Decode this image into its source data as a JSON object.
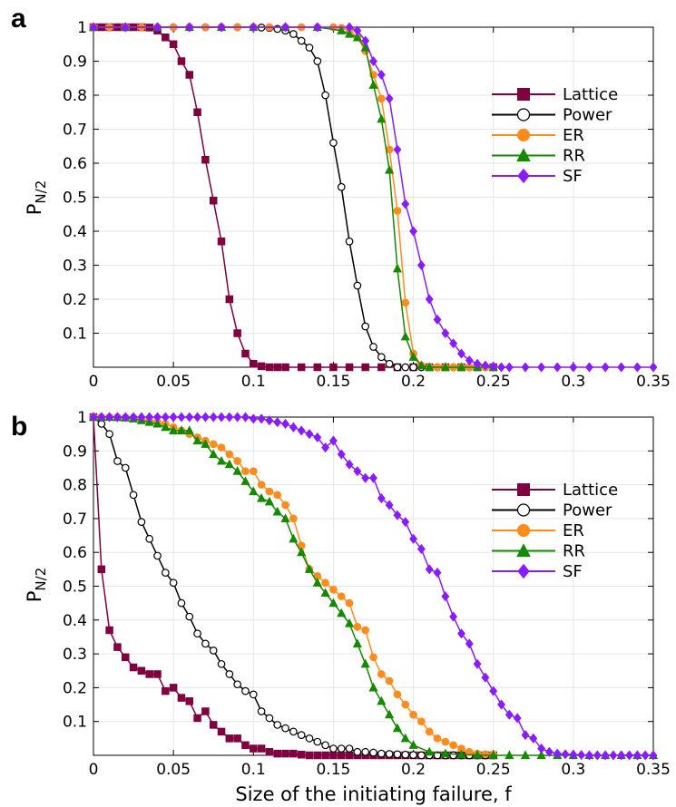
{
  "chart_data": [
    {
      "type": "line",
      "panel_label": "a",
      "ylabel": "P",
      "ylabel_sub": "N/2",
      "xlabel": "",
      "xlim": [
        0,
        0.35
      ],
      "ylim": [
        0,
        1
      ],
      "xticks": [
        "0",
        "0.05",
        "0.1",
        "0.15",
        "0.2",
        "0.25",
        "0.3",
        "0.35"
      ],
      "yticks": [
        "0.1",
        "0.2",
        "0.3",
        "0.4",
        "0.5",
        "0.6",
        "0.7",
        "0.8",
        "0.9",
        "1"
      ],
      "grid": true,
      "legend_position": "right",
      "series": [
        {
          "name": "Lattice",
          "color": "#800040",
          "marker": "square",
          "hollow": false,
          "x": [
            0,
            0.005,
            0.01,
            0.015,
            0.02,
            0.025,
            0.03,
            0.035,
            0.04,
            0.045,
            0.05,
            0.055,
            0.06,
            0.065,
            0.07,
            0.075,
            0.08,
            0.085,
            0.09,
            0.095,
            0.1,
            0.105,
            0.11,
            0.115,
            0.12,
            0.13,
            0.14,
            0.15,
            0.16,
            0.17,
            0.18,
            0.19,
            0.2,
            0.21,
            0.22,
            0.23,
            0.24,
            0.25
          ],
          "y": [
            1,
            1,
            1,
            1,
            1,
            1,
            1,
            0.999,
            0.99,
            0.97,
            0.95,
            0.9,
            0.86,
            0.75,
            0.61,
            0.49,
            0.37,
            0.2,
            0.1,
            0.04,
            0.01,
            0.003,
            0,
            0,
            0,
            0,
            0,
            0,
            0,
            0,
            0,
            0,
            0,
            0,
            0,
            0,
            0,
            0
          ]
        },
        {
          "name": "Power",
          "color": "#000000",
          "marker": "circle",
          "hollow": true,
          "x": [
            0,
            0.01,
            0.02,
            0.03,
            0.04,
            0.05,
            0.06,
            0.07,
            0.08,
            0.09,
            0.1,
            0.105,
            0.11,
            0.115,
            0.12,
            0.125,
            0.13,
            0.135,
            0.14,
            0.145,
            0.15,
            0.155,
            0.16,
            0.165,
            0.17,
            0.175,
            0.18,
            0.185,
            0.19,
            0.195,
            0.2,
            0.205,
            0.21,
            0.215,
            0.22,
            0.225,
            0.23,
            0.235,
            0.24,
            0.245,
            0.25
          ],
          "y": [
            1,
            1,
            1,
            1,
            1,
            1,
            1,
            1,
            1,
            1,
            1,
            0.999,
            0.998,
            0.995,
            0.99,
            0.98,
            0.96,
            0.94,
            0.9,
            0.8,
            0.66,
            0.53,
            0.37,
            0.24,
            0.12,
            0.06,
            0.03,
            0.01,
            0,
            0,
            0,
            0,
            0,
            0,
            0,
            0,
            0,
            0,
            0,
            0,
            0
          ]
        },
        {
          "name": "ER",
          "color": "#ff8c1a",
          "marker": "circle",
          "hollow": false,
          "x": [
            0,
            0.01,
            0.02,
            0.03,
            0.04,
            0.05,
            0.06,
            0.07,
            0.08,
            0.09,
            0.1,
            0.11,
            0.12,
            0.13,
            0.14,
            0.15,
            0.155,
            0.16,
            0.165,
            0.17,
            0.175,
            0.18,
            0.185,
            0.19,
            0.195,
            0.2,
            0.205,
            0.21,
            0.215,
            0.22,
            0.225,
            0.23,
            0.235,
            0.24,
            0.245,
            0.25
          ],
          "y": [
            1,
            1,
            1,
            1,
            1,
            1,
            1,
            1,
            1,
            1,
            1,
            1,
            1,
            1,
            1,
            1,
            0.998,
            0.99,
            0.97,
            0.93,
            0.86,
            0.79,
            0.64,
            0.46,
            0.19,
            0.04,
            0.005,
            0,
            0,
            0,
            0,
            0,
            0,
            0,
            0,
            0
          ]
        },
        {
          "name": "RR",
          "color": "#138a00",
          "marker": "triangle",
          "hollow": false,
          "x": [
            0,
            0.02,
            0.04,
            0.06,
            0.08,
            0.1,
            0.12,
            0.14,
            0.155,
            0.16,
            0.165,
            0.17,
            0.175,
            0.18,
            0.185,
            0.19,
            0.195,
            0.2,
            0.205,
            0.21,
            0.22,
            0.23,
            0.24,
            0.25
          ],
          "y": [
            1,
            1,
            1,
            1,
            1,
            1,
            1,
            1,
            0.99,
            0.98,
            0.97,
            0.94,
            0.83,
            0.73,
            0.58,
            0.29,
            0.09,
            0.03,
            0.005,
            0,
            0,
            0,
            0,
            0
          ]
        },
        {
          "name": "SF",
          "color": "#8a1aff",
          "marker": "diamond",
          "hollow": false,
          "x": [
            0,
            0.02,
            0.04,
            0.06,
            0.08,
            0.1,
            0.12,
            0.14,
            0.16,
            0.165,
            0.17,
            0.175,
            0.18,
            0.185,
            0.19,
            0.195,
            0.2,
            0.205,
            0.21,
            0.215,
            0.22,
            0.225,
            0.23,
            0.235,
            0.24,
            0.245,
            0.25,
            0.255,
            0.26,
            0.27,
            0.28,
            0.29,
            0.3,
            0.31,
            0.32,
            0.33,
            0.34,
            0.35
          ],
          "y": [
            1,
            1,
            1,
            1,
            1,
            1,
            1,
            1,
            1,
            0.99,
            0.96,
            0.9,
            0.86,
            0.79,
            0.64,
            0.48,
            0.4,
            0.3,
            0.2,
            0.14,
            0.1,
            0.07,
            0.04,
            0.02,
            0.01,
            0.005,
            0.002,
            0,
            0,
            0,
            0,
            0,
            0,
            0,
            0,
            0,
            0,
            0
          ]
        }
      ]
    },
    {
      "type": "line",
      "panel_label": "b",
      "ylabel": "P",
      "ylabel_sub": "N/2",
      "xlabel": "Size of the initiating failure, f",
      "xlim": [
        0,
        0.35
      ],
      "ylim": [
        0,
        1
      ],
      "xticks": [
        "0",
        "0.05",
        "0.1",
        "0.15",
        "0.2",
        "0.25",
        "0.3",
        "0.35"
      ],
      "yticks": [
        "0.1",
        "0.2",
        "0.3",
        "0.4",
        "0.5",
        "0.6",
        "0.7",
        "0.8",
        "0.9",
        "1"
      ],
      "grid": true,
      "legend_position": "right",
      "series": [
        {
          "name": "Lattice",
          "color": "#800040",
          "marker": "square",
          "hollow": false,
          "x": [
            0,
            0.005,
            0.01,
            0.015,
            0.02,
            0.025,
            0.03,
            0.035,
            0.04,
            0.045,
            0.05,
            0.055,
            0.06,
            0.065,
            0.07,
            0.075,
            0.08,
            0.085,
            0.09,
            0.095,
            0.1,
            0.105,
            0.11,
            0.115,
            0.12,
            0.125,
            0.13,
            0.135,
            0.14,
            0.145,
            0.15,
            0.155,
            0.16,
            0.165,
            0.17,
            0.175,
            0.18,
            0.185,
            0.19,
            0.195,
            0.2,
            0.205,
            0.21,
            0.215,
            0.22,
            0.225,
            0.23,
            0.235,
            0.24,
            0.245,
            0.25
          ],
          "y": [
            1,
            0.55,
            0.37,
            0.32,
            0.29,
            0.26,
            0.25,
            0.24,
            0.24,
            0.19,
            0.2,
            0.17,
            0.16,
            0.11,
            0.13,
            0.09,
            0.07,
            0.05,
            0.05,
            0.03,
            0.02,
            0.02,
            0.01,
            0.005,
            0.005,
            0.005,
            0.002,
            0,
            0,
            0,
            0,
            0,
            0,
            0,
            0,
            0,
            0,
            0,
            0,
            0,
            0,
            0,
            0,
            0,
            0,
            0,
            0,
            0,
            0,
            0,
            0
          ]
        },
        {
          "name": "Power",
          "color": "#000000",
          "marker": "circle",
          "hollow": true,
          "x": [
            0,
            0.005,
            0.01,
            0.015,
            0.02,
            0.025,
            0.03,
            0.035,
            0.04,
            0.045,
            0.05,
            0.055,
            0.06,
            0.065,
            0.07,
            0.075,
            0.08,
            0.085,
            0.09,
            0.095,
            0.1,
            0.105,
            0.11,
            0.115,
            0.12,
            0.125,
            0.13,
            0.135,
            0.14,
            0.145,
            0.15,
            0.155,
            0.16,
            0.165,
            0.17,
            0.175,
            0.18,
            0.185,
            0.19,
            0.195,
            0.2,
            0.205,
            0.21,
            0.215,
            0.22,
            0.225,
            0.23,
            0.235,
            0.24,
            0.245,
            0.25
          ],
          "y": [
            1,
            0.98,
            0.95,
            0.87,
            0.85,
            0.77,
            0.69,
            0.64,
            0.59,
            0.54,
            0.51,
            0.45,
            0.41,
            0.36,
            0.33,
            0.31,
            0.27,
            0.24,
            0.21,
            0.19,
            0.18,
            0.13,
            0.11,
            0.09,
            0.08,
            0.07,
            0.06,
            0.05,
            0.04,
            0.03,
            0.02,
            0.02,
            0.02,
            0.01,
            0.01,
            0.008,
            0.005,
            0.004,
            0.003,
            0.002,
            0.001,
            0,
            0,
            0,
            0,
            0,
            0,
            0,
            0,
            0,
            0
          ]
        },
        {
          "name": "ER",
          "color": "#ff8c1a",
          "marker": "circle",
          "hollow": false,
          "x": [
            0,
            0.005,
            0.01,
            0.015,
            0.02,
            0.025,
            0.03,
            0.035,
            0.04,
            0.045,
            0.05,
            0.055,
            0.06,
            0.065,
            0.07,
            0.075,
            0.08,
            0.085,
            0.09,
            0.095,
            0.1,
            0.105,
            0.11,
            0.115,
            0.12,
            0.125,
            0.13,
            0.135,
            0.14,
            0.145,
            0.15,
            0.155,
            0.16,
            0.165,
            0.17,
            0.175,
            0.18,
            0.185,
            0.19,
            0.195,
            0.2,
            0.205,
            0.21,
            0.215,
            0.22,
            0.225,
            0.23,
            0.235,
            0.24,
            0.245,
            0.25
          ],
          "y": [
            1,
            1,
            1,
            1,
            0.999,
            0.998,
            0.995,
            0.99,
            0.985,
            0.98,
            0.97,
            0.96,
            0.95,
            0.94,
            0.93,
            0.92,
            0.91,
            0.89,
            0.87,
            0.84,
            0.84,
            0.8,
            0.78,
            0.77,
            0.74,
            0.7,
            0.62,
            0.55,
            0.53,
            0.51,
            0.49,
            0.47,
            0.45,
            0.38,
            0.37,
            0.29,
            0.24,
            0.22,
            0.18,
            0.15,
            0.12,
            0.1,
            0.07,
            0.05,
            0.04,
            0.03,
            0.02,
            0.01,
            0.005,
            0.003,
            0.002
          ]
        },
        {
          "name": "RR",
          "color": "#138a00",
          "marker": "triangle",
          "hollow": false,
          "x": [
            0,
            0.005,
            0.01,
            0.015,
            0.02,
            0.025,
            0.03,
            0.035,
            0.04,
            0.045,
            0.05,
            0.055,
            0.06,
            0.065,
            0.07,
            0.075,
            0.08,
            0.085,
            0.09,
            0.095,
            0.1,
            0.105,
            0.11,
            0.115,
            0.12,
            0.125,
            0.13,
            0.135,
            0.14,
            0.145,
            0.15,
            0.155,
            0.16,
            0.165,
            0.17,
            0.175,
            0.18,
            0.185,
            0.19,
            0.195,
            0.2,
            0.21,
            0.22,
            0.23,
            0.24,
            0.25,
            0.26,
            0.27,
            0.28,
            0.29,
            0.3,
            0.31,
            0.32,
            0.33,
            0.34,
            0.35
          ],
          "y": [
            1,
            1,
            1,
            0.999,
            0.998,
            0.995,
            0.99,
            0.985,
            0.98,
            0.97,
            0.96,
            0.96,
            0.96,
            0.93,
            0.92,
            0.89,
            0.87,
            0.86,
            0.84,
            0.81,
            0.78,
            0.76,
            0.75,
            0.72,
            0.7,
            0.64,
            0.6,
            0.55,
            0.51,
            0.48,
            0.45,
            0.42,
            0.39,
            0.33,
            0.27,
            0.2,
            0.16,
            0.12,
            0.08,
            0.05,
            0.03,
            0.01,
            0.005,
            0.002,
            0.001,
            0,
            0,
            0,
            0,
            0,
            0,
            0,
            0,
            0,
            0,
            0
          ]
        },
        {
          "name": "SF",
          "color": "#8a1aff",
          "marker": "diamond",
          "hollow": false,
          "x": [
            0,
            0.005,
            0.01,
            0.015,
            0.02,
            0.025,
            0.03,
            0.035,
            0.04,
            0.045,
            0.05,
            0.055,
            0.06,
            0.065,
            0.07,
            0.075,
            0.08,
            0.085,
            0.09,
            0.095,
            0.1,
            0.105,
            0.11,
            0.115,
            0.12,
            0.125,
            0.13,
            0.135,
            0.14,
            0.145,
            0.15,
            0.155,
            0.16,
            0.165,
            0.17,
            0.175,
            0.18,
            0.185,
            0.19,
            0.195,
            0.2,
            0.205,
            0.21,
            0.215,
            0.22,
            0.225,
            0.23,
            0.235,
            0.24,
            0.245,
            0.25,
            0.255,
            0.26,
            0.265,
            0.27,
            0.275,
            0.28,
            0.285,
            0.29,
            0.295,
            0.3,
            0.305,
            0.31,
            0.315,
            0.32,
            0.325,
            0.33,
            0.335,
            0.34,
            0.345,
            0.35
          ],
          "y": [
            1,
            1,
            1,
            1,
            1,
            1,
            1,
            1,
            1,
            1,
            1,
            1,
            1,
            1,
            1,
            1,
            1,
            1,
            1,
            1,
            0.995,
            0.995,
            0.99,
            0.985,
            0.98,
            0.97,
            0.96,
            0.95,
            0.94,
            0.91,
            0.93,
            0.89,
            0.86,
            0.84,
            0.82,
            0.82,
            0.76,
            0.74,
            0.71,
            0.69,
            0.64,
            0.61,
            0.55,
            0.54,
            0.47,
            0.41,
            0.36,
            0.33,
            0.27,
            0.23,
            0.19,
            0.15,
            0.12,
            0.11,
            0.06,
            0.05,
            0.02,
            0.01,
            0.005,
            0.003,
            0.002,
            0.001,
            0,
            0,
            0,
            0,
            0,
            0,
            0,
            0,
            0
          ]
        }
      ]
    }
  ]
}
